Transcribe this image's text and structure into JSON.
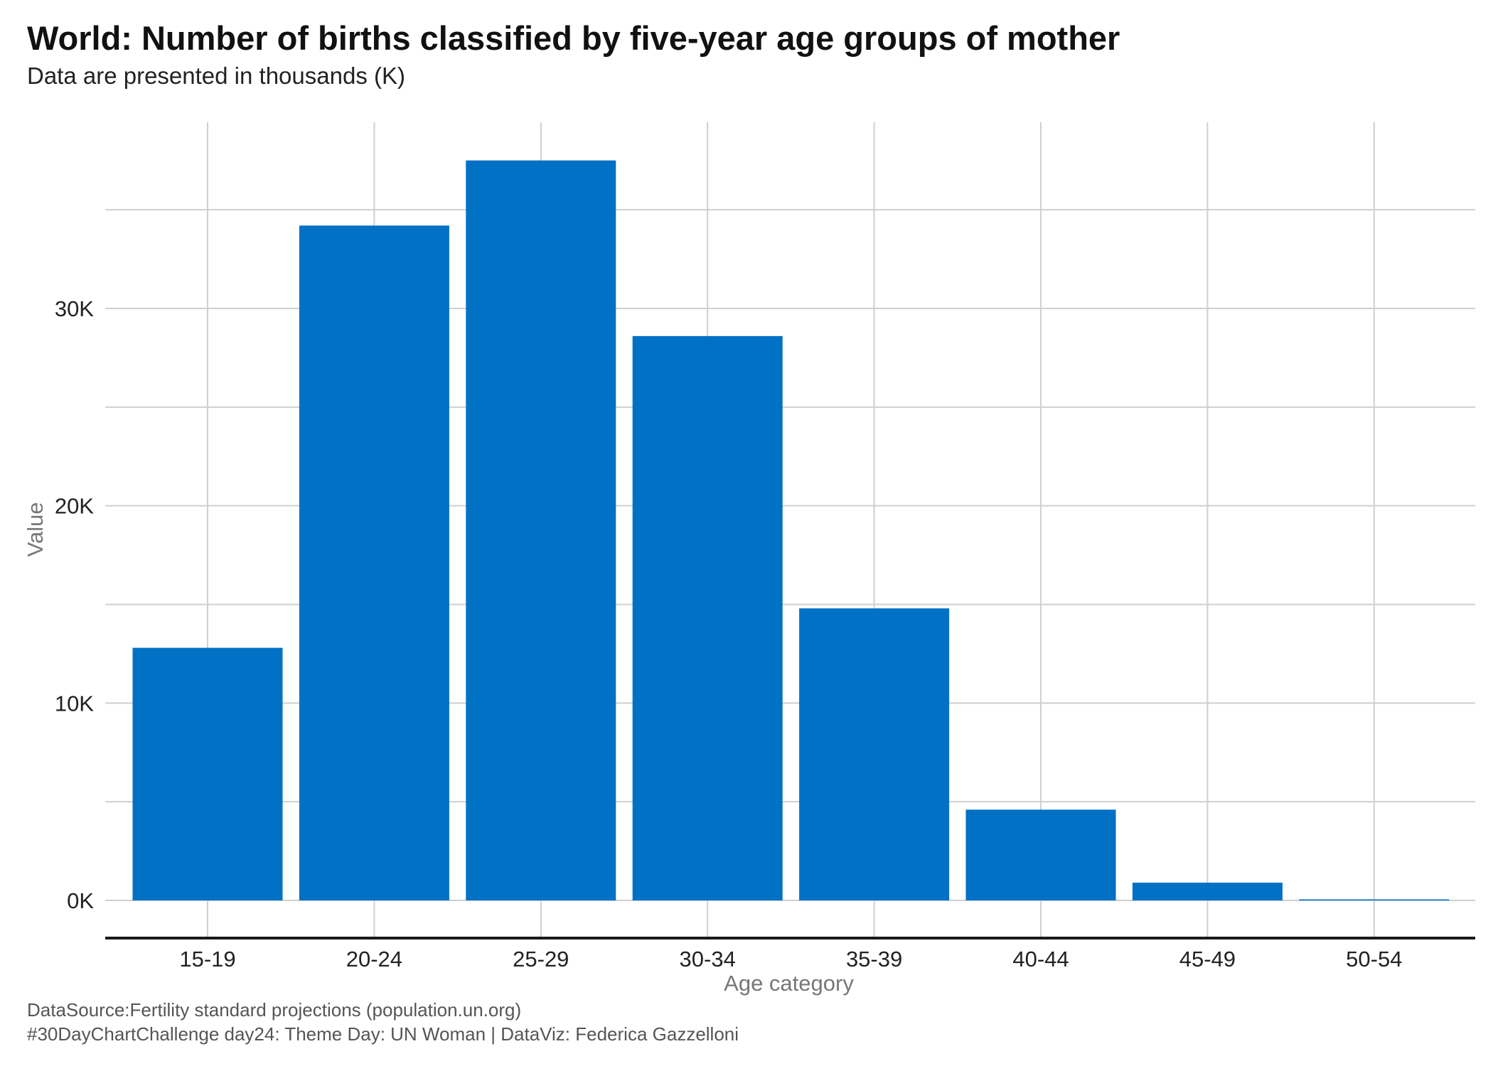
{
  "chart_data": {
    "type": "bar",
    "title": "World: Number of births classified by five-year age groups of mother",
    "subtitle": "Data are presented in thousands (K)",
    "xlabel": "Age category",
    "ylabel": "Value",
    "categories": [
      "15-19",
      "20-24",
      "25-29",
      "30-34",
      "35-39",
      "40-44",
      "45-49",
      "50-54"
    ],
    "values": [
      12800,
      34200,
      37500,
      28600,
      14800,
      4600,
      900,
      50
    ],
    "ylim": [
      0,
      40000
    ],
    "yticks": [
      0,
      10000,
      20000,
      30000
    ],
    "ytick_labels": [
      "0K",
      "10K",
      "20K",
      "30K"
    ],
    "bar_color": "#0071C5",
    "grid": true,
    "legend": "none",
    "captions": [
      "DataSource:Fertility standard projections (population.un.org)",
      "#30DayChartChallenge day24: Theme Day: UN Woman | DataViz: Federica Gazzelloni"
    ]
  }
}
